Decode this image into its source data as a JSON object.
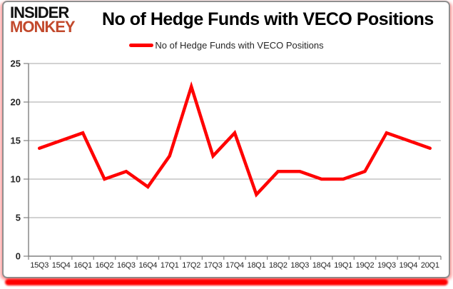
{
  "logo": {
    "line1": "INSIDER",
    "line2": "MONKEY"
  },
  "header": {
    "title": "No of Hedge Funds with VECO Positions"
  },
  "legend": {
    "label": "No of Hedge Funds with VECO Positions"
  },
  "colors": {
    "line": "#ff0000",
    "logo_accent": "#c2492c",
    "grid": "#a6a6a6",
    "axis": "#808080",
    "text": "#262626",
    "card_border": "#8f8f8f",
    "glow": "#ff0000"
  },
  "chart_data": {
    "type": "line",
    "title": "No of Hedge Funds with VECO Positions",
    "categories": [
      "15Q3",
      "15Q4",
      "16Q1",
      "16Q2",
      "16Q3",
      "16Q4",
      "17Q1",
      "17Q2",
      "17Q3",
      "17Q4",
      "18Q1",
      "18Q2",
      "18Q3",
      "18Q4",
      "19Q1",
      "19Q2",
      "19Q3",
      "19Q4",
      "20Q1"
    ],
    "series": [
      {
        "name": "No of Hedge Funds with VECO Positions",
        "color": "#ff0000",
        "values": [
          14,
          15,
          16,
          10,
          11,
          9,
          13,
          22,
          13,
          16,
          8,
          11,
          11,
          10,
          10,
          11,
          16,
          15,
          14
        ]
      }
    ],
    "xlabel": "",
    "ylabel": "",
    "ylim": [
      0,
      25
    ],
    "yticks": [
      0,
      5,
      10,
      15,
      20,
      25
    ],
    "grid": true,
    "legend_position": "top-center"
  }
}
